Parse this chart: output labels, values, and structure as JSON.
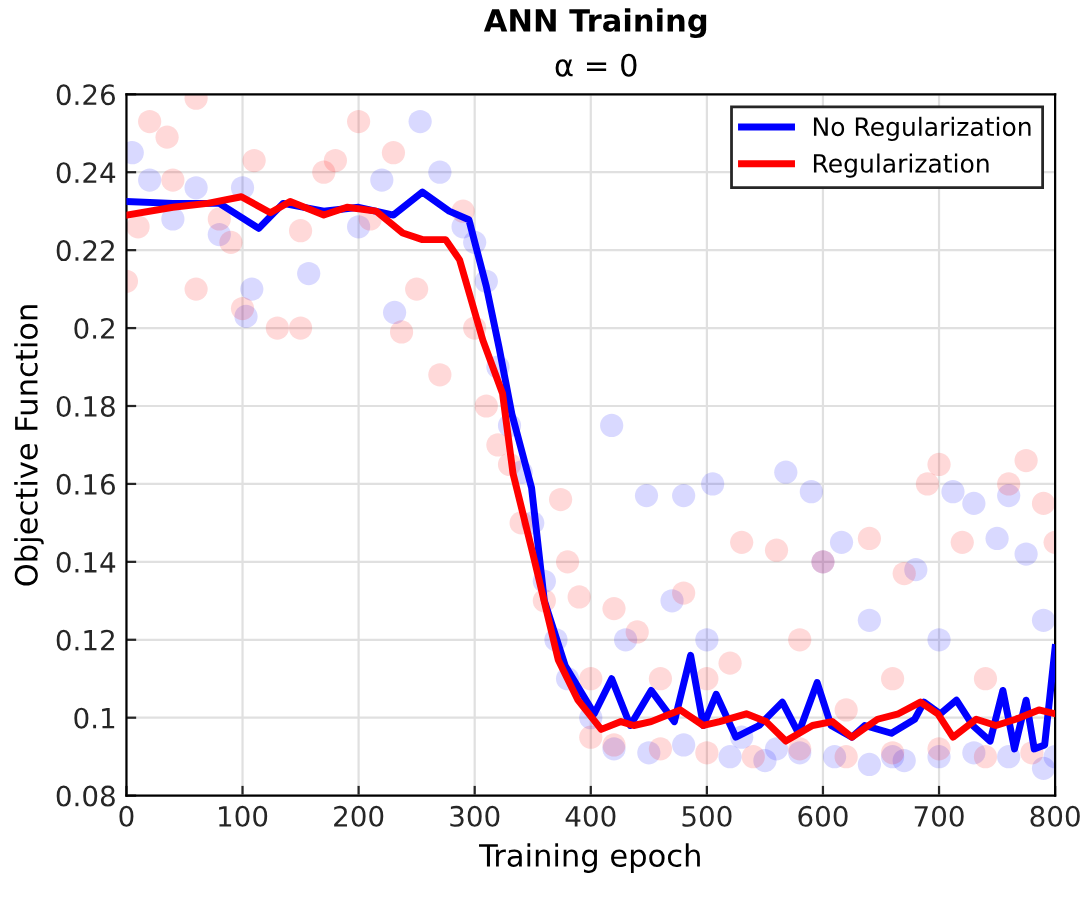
{
  "chart_data": {
    "type": "line",
    "title": "ANN Training",
    "subtitle": "α = 0",
    "xlabel": "Training epoch",
    "ylabel": "Objective Function",
    "xlim": [
      0,
      800
    ],
    "xticks": [
      0,
      100,
      200,
      300,
      400,
      500,
      600,
      700,
      800
    ],
    "ylim": [
      0.08,
      0.26
    ],
    "yticks": [
      0.08,
      0.1,
      0.12,
      0.14,
      0.16,
      0.18,
      0.2,
      0.22,
      0.24,
      0.26
    ],
    "grid": true,
    "legend": "top right",
    "marker": "none",
    "line_style": "solid",
    "series": [
      {
        "type": "scatter",
        "marker": "circle",
        "color": "#0000ff",
        "x": [
          5,
          20,
          40,
          60,
          80,
          100,
          103,
          108,
          157,
          200,
          220,
          231,
          253,
          270,
          290,
          300,
          310,
          320,
          330,
          340,
          350,
          360,
          370,
          380,
          400,
          418,
          430,
          448,
          470,
          480,
          500,
          505,
          530,
          560,
          568,
          590,
          600,
          616,
          640,
          660,
          680,
          700,
          712,
          730,
          750,
          760,
          775,
          790,
          800,
          420,
          450,
          480,
          520,
          550,
          580,
          610,
          640,
          670,
          700,
          730,
          760,
          790
        ],
        "values": [
          0.245,
          0.238,
          0.228,
          0.236,
          0.224,
          0.236,
          0.203,
          0.21,
          0.214,
          0.226,
          0.238,
          0.204,
          0.253,
          0.24,
          0.226,
          0.222,
          0.212,
          0.19,
          0.175,
          0.163,
          0.15,
          0.135,
          0.12,
          0.11,
          0.1,
          0.175,
          0.12,
          0.157,
          0.13,
          0.157,
          0.12,
          0.16,
          0.095,
          0.092,
          0.163,
          0.158,
          0.14,
          0.145,
          0.125,
          0.09,
          0.138,
          0.12,
          0.158,
          0.155,
          0.146,
          0.157,
          0.142,
          0.125,
          0.09,
          0.092,
          0.091,
          0.093,
          0.09,
          0.089,
          0.091,
          0.09,
          0.088,
          0.089,
          0.09,
          0.091,
          0.09,
          0.087
        ]
      },
      {
        "type": "scatter",
        "marker": "circle",
        "color": "#ff0000",
        "x": [
          0,
          10,
          20,
          35,
          40,
          60,
          60,
          80,
          90,
          100,
          110,
          130,
          150,
          150,
          170,
          180,
          200,
          210,
          230,
          237,
          250,
          270,
          290,
          300,
          310,
          320,
          330,
          340,
          360,
          374,
          380,
          390,
          400,
          400,
          420,
          440,
          460,
          480,
          500,
          520,
          530,
          560,
          580,
          600,
          620,
          640,
          660,
          670,
          690,
          700,
          720,
          740,
          760,
          775,
          790,
          800,
          420,
          460,
          500,
          540,
          580,
          620,
          660,
          700,
          740,
          780
        ],
        "values": [
          0.212,
          0.226,
          0.253,
          0.249,
          0.238,
          0.259,
          0.21,
          0.228,
          0.222,
          0.205,
          0.243,
          0.2,
          0.225,
          0.2,
          0.24,
          0.243,
          0.253,
          0.228,
          0.245,
          0.199,
          0.21,
          0.188,
          0.23,
          0.2,
          0.18,
          0.17,
          0.165,
          0.15,
          0.13,
          0.156,
          0.14,
          0.131,
          0.11,
          0.095,
          0.128,
          0.122,
          0.11,
          0.132,
          0.11,
          0.114,
          0.145,
          0.143,
          0.12,
          0.14,
          0.102,
          0.146,
          0.11,
          0.137,
          0.16,
          0.165,
          0.145,
          0.11,
          0.16,
          0.166,
          0.155,
          0.145,
          0.093,
          0.092,
          0.091,
          0.09,
          0.092,
          0.09,
          0.091,
          0.092,
          0.09,
          0.091
        ]
      },
      {
        "name": "No Regularization",
        "color": "#0000ff",
        "x": [
          0,
          40,
          80,
          114,
          135,
          170,
          200,
          230,
          255,
          278,
          295,
          310,
          321,
          332,
          349,
          360,
          378,
          403,
          418,
          434,
          452,
          472,
          486,
          497,
          508,
          525,
          545,
          565,
          579,
          595,
          607,
          625,
          636,
          659,
          679,
          687,
          701,
          715,
          729,
          744,
          755,
          765,
          775,
          782,
          791,
          800
        ],
        "values": [
          0.2325,
          0.232,
          0.232,
          0.2256,
          0.232,
          0.23,
          0.231,
          0.229,
          0.2349,
          0.23,
          0.2278,
          0.2107,
          0.195,
          0.178,
          0.159,
          0.13,
          0.1133,
          0.101,
          0.11,
          0.098,
          0.107,
          0.099,
          0.116,
          0.098,
          0.106,
          0.095,
          0.098,
          0.104,
          0.096,
          0.109,
          0.098,
          0.095,
          0.098,
          0.096,
          0.0996,
          0.104,
          0.101,
          0.1045,
          0.098,
          0.094,
          0.107,
          0.092,
          0.1045,
          0.092,
          0.093,
          0.118
        ]
      },
      {
        "name": "Regularization",
        "color": "#ff0000",
        "x": [
          0,
          40,
          70,
          99,
          124,
          141,
          170,
          190,
          215,
          238,
          255,
          275,
          287,
          307,
          324,
          333,
          350,
          361,
          372,
          389,
          409,
          426,
          437,
          452,
          477,
          497,
          511,
          534,
          551,
          568,
          591,
          608,
          625,
          647,
          665,
          684,
          699,
          712,
          732,
          749,
          766,
          786,
          800
        ],
        "values": [
          0.229,
          0.231,
          0.232,
          0.2337,
          0.2296,
          0.2325,
          0.229,
          0.231,
          0.23,
          0.2244,
          0.2227,
          0.2227,
          0.2175,
          0.1969,
          0.1832,
          0.1627,
          0.1422,
          0.1285,
          0.1148,
          0.1045,
          0.097,
          0.099,
          0.098,
          0.099,
          0.102,
          0.098,
          0.099,
          0.101,
          0.099,
          0.094,
          0.098,
          0.099,
          0.095,
          0.0996,
          0.101,
          0.104,
          0.101,
          0.095,
          0.0996,
          0.098,
          0.0996,
          0.102,
          0.101
        ]
      }
    ]
  }
}
